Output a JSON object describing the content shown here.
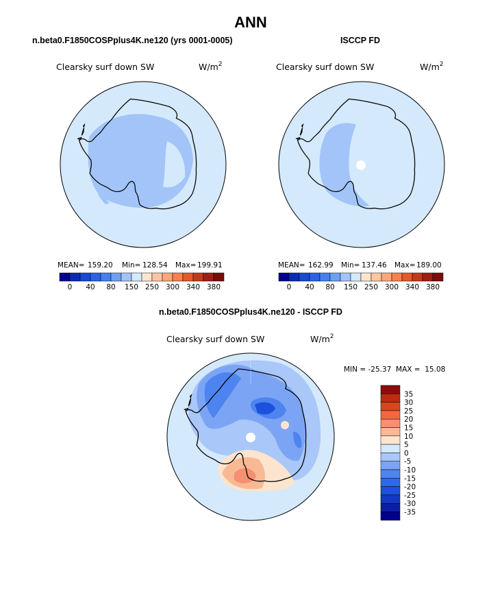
{
  "title": "ANN",
  "colors": {
    "land_outline": "#000000",
    "ocean_base": "#d4e9fb",
    "abs_scale": [
      "#00008c",
      "#0a2bb4",
      "#1a49d2",
      "#2a62e6",
      "#4580ee",
      "#6f9ff3",
      "#a2c4f8",
      "#d4e9fb",
      "#fde4cf",
      "#fdc6a2",
      "#fba67c",
      "#f5814f",
      "#e55a2a",
      "#c4381a",
      "#a01f14",
      "#7a0c0a"
    ],
    "diff_scale": [
      "#00008c",
      "#0a1fa8",
      "#1238c4",
      "#1d50dc",
      "#2f68ea",
      "#4e84f0",
      "#7ba5f4",
      "#a9c7f8",
      "#d4e9fb",
      "#fde4cf",
      "#f8b994",
      "#f59070",
      "#f06842",
      "#e0421f",
      "#be2a12",
      "#8c0c0c"
    ]
  },
  "panels": [
    {
      "title": "n.beta0.F1850COSPplus4K.ne120 (yrs 0001-0005)",
      "variable": "Clearsky surf down SW",
      "units_base": "W/m",
      "units_exp": "2",
      "stats": {
        "mean_label": "MEAN=",
        "mean": "159.20",
        "min_label": "Min=",
        "min": "128.54",
        "max_label": "Max=",
        "max": "199.91"
      },
      "colorbar_ticks": [
        "0",
        "40",
        "80",
        "150",
        "250",
        "300",
        "340",
        "380"
      ]
    },
    {
      "title": "ISCCP FD",
      "variable": "Clearsky surf down SW",
      "units_base": "W/m",
      "units_exp": "2",
      "stats": {
        "mean_label": "MEAN=",
        "mean": "162.99",
        "min_label": "Min=",
        "min": "137.46",
        "max_label": "Max=",
        "max": "189.00"
      },
      "colorbar_ticks": [
        "0",
        "40",
        "80",
        "150",
        "250",
        "300",
        "340",
        "380"
      ]
    }
  ],
  "difference": {
    "title": "n.beta0.F1850COSPplus4K.ne120 - ISCCP FD",
    "variable": "Clearsky surf down SW",
    "units_base": "W/m",
    "units_exp": "2",
    "minmax_text": "MIN = -25.37  MAX =  15.08",
    "colorbar_labels": [
      "35",
      "30",
      "25",
      "20",
      "15",
      "10",
      "5",
      "0",
      "-5",
      "-10",
      "-15",
      "-20",
      "-25",
      "-30",
      "-35"
    ]
  },
  "chart_data": [
    {
      "type": "heatmap",
      "projection": "south-polar-stereographic",
      "title": "n.beta0.F1850COSPplus4K.ne120 (yrs 0001-0005)",
      "field": "Clearsky surf down SW",
      "units": "W/m^2",
      "mean": 159.2,
      "min": 128.54,
      "max": 199.91,
      "contour_levels": [
        0,
        40,
        80,
        150,
        250,
        300,
        340,
        380
      ]
    },
    {
      "type": "heatmap",
      "projection": "south-polar-stereographic",
      "title": "ISCCP FD",
      "field": "Clearsky surf down SW",
      "units": "W/m^2",
      "mean": 162.99,
      "min": 137.46,
      "max": 189.0,
      "contour_levels": [
        0,
        40,
        80,
        150,
        250,
        300,
        340,
        380
      ]
    },
    {
      "type": "heatmap",
      "projection": "south-polar-stereographic",
      "title": "n.beta0.F1850COSPplus4K.ne120 - ISCCP FD",
      "field": "Clearsky surf down SW",
      "units": "W/m^2",
      "min": -25.37,
      "max": 15.08,
      "contour_levels": [
        -35,
        -30,
        -25,
        -20,
        -15,
        -10,
        -5,
        0,
        5,
        10,
        15,
        20,
        25,
        30,
        35
      ]
    }
  ]
}
